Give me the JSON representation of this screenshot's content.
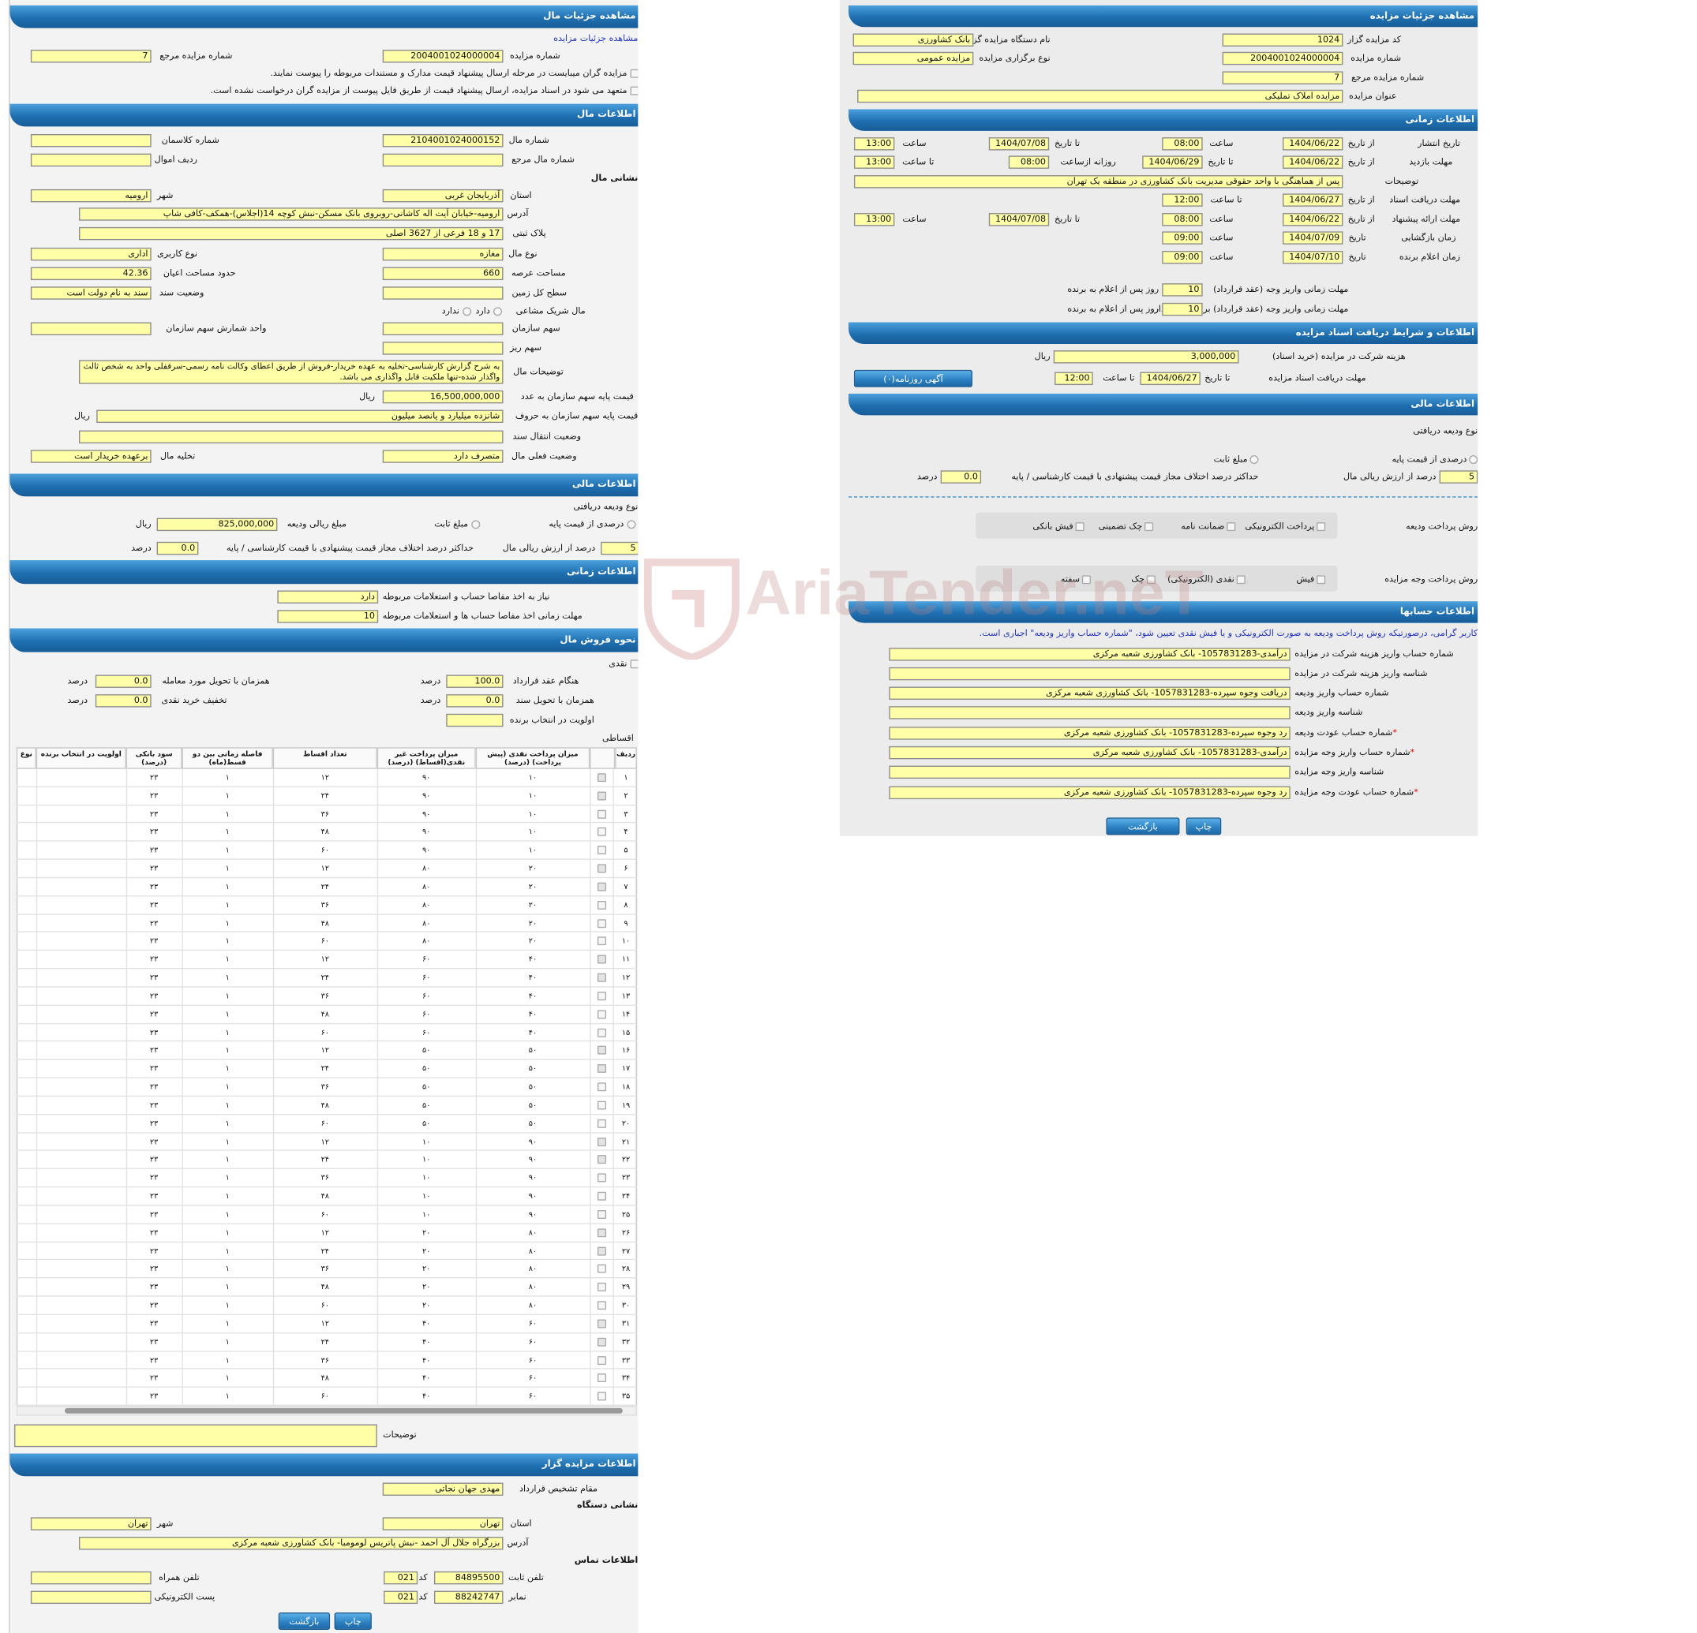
{
  "watermark": "AriaTender.neT",
  "right": {
    "headers": [
      "مشاهده جزئیات مزایده",
      "اطلاعات زمانی",
      "اطلاعات و شرایط دریافت اسناد مزایده",
      "اطلاعات مالی",
      "اطلاعات حسابها"
    ],
    "lines": [
      [
        "کد مزایده گزار",
        "1024",
        "نام دستگاه مزایده گزار",
        "بانک کشاورزی"
      ],
      [
        "شماره مزایده",
        "2004001024000004",
        "نوع برگزاری مزایده",
        "مزایده عمومی"
      ],
      [
        "شماره مزایده مرجع",
        "7"
      ],
      [
        "عنوان مزایده",
        "مزایده املاک تملیکی"
      ],
      [
        "تاریخ انتشار",
        "از تاریخ",
        "1404/06/22",
        "ساعت",
        "08:00",
        "تا تاریخ",
        "1404/07/08",
        "ساعت",
        "13:00"
      ],
      [
        "مهلت بازدید",
        "از تاریخ",
        "1404/06/22",
        "تا تاریخ",
        "1404/06/29",
        "روزانه ازساعت",
        "08:00",
        "تا ساعت",
        "13:00"
      ],
      [
        "توضیحات",
        "پس از هماهنگی با واحد حقوقی مدیریت بانک کشاورزی در منطقه یک تهران"
      ],
      [
        "مهلت دریافت اسناد",
        "از تاریخ",
        "1404/06/27",
        "تا ساعت",
        "12:00"
      ],
      [
        "مهلت ارائه پیشنهاد",
        "از تاریخ",
        "1404/06/22",
        "ساعت",
        "08:00",
        "تا تاریخ",
        "1404/07/08",
        "ساعت",
        "13:00"
      ],
      [
        "زمان بازگشایی",
        "تاریخ",
        "1404/07/09",
        "ساعت",
        "09:00"
      ],
      [
        "زمان اعلام برنده",
        "تاریخ",
        "1404/07/10",
        "ساعت",
        "09:00"
      ],
      [
        "مهلت زمانی واریز وجه (عقد قرارداد)",
        "10",
        "روز پس از اعلام به برنده"
      ],
      [
        "مهلت زمانی واریز وجه (عقد قرارداد) برای وثیقه گذار",
        "10",
        "روز پس از اعلام به برنده"
      ],
      [
        "هزینه شرکت در مزایده (خرید اسناد)",
        "3,000,000",
        "ریال"
      ],
      [
        "مهلت دریافت اسناد مزایده",
        "تا تاریخ",
        "1404/06/27",
        "تا ساعت",
        "12:00",
        "آگهی روزنامه(۰)"
      ],
      [
        "نوع ودیعه دریافتی"
      ],
      [
        "درصدی از قیمت پایه",
        "مبلغ ثابت"
      ],
      [
        "5",
        "درصد از ارزش ریالی مال",
        "حداکثر درصد اختلاف مجاز قیمت پیشنهادی با قیمت کارشناسی / پایه",
        "0.0",
        "درصد"
      ],
      [
        "روش پرداخت ودیعه",
        "پرداخت الکترونیکی",
        "ضمانت نامه",
        "چک تضمینی",
        "فیش بانکی"
      ],
      [
        "روش پرداخت وجه مزایده",
        "فیش",
        "نقدی (الکترونیکی)",
        "چک",
        "سفته"
      ],
      [
        "کاربر گرامی، درصورتیکه روش پرداخت ودیعه به صورت الکترونیکی و یا فیش نقدی تعیین شود، \"شماره حساب واریز ودیعه\" اجباری است."
      ],
      [
        "شماره حساب واریز هزینه شرکت در مزایده",
        "درآمدی-1057831283- بانک کشاورزی شعبه مرکزی"
      ],
      [
        "شناسه واریز هزینه شرکت در مزایده"
      ],
      [
        "شماره حساب واریز ودیعه",
        "دریافت وجوه سپرده-1057831283- بانک کشاورزی شعبه مرکزی"
      ],
      [
        "شناسه واریز ودیعه"
      ],
      [
        "شماره حساب عودت ودیعه",
        "*",
        "رد وجوه سپرده-1057831283- بانک کشاورزی شعبه مرکزی"
      ],
      [
        "شماره حساب واریز وجه مزایده",
        "*",
        "درآمدی-1057831283- بانک کشاورزی شعبه مرکزی"
      ],
      [
        "شناسه واریز وجه مزایده"
      ],
      [
        "شماره حساب عودت وجه مزایده",
        "*",
        "رد وجوه سپرده-1057831283- بانک کشاورزی شعبه مرکزی"
      ],
      [
        "چاپ",
        "بازگشت"
      ]
    ]
  },
  "left": {
    "headers": [
      "مشاهده جزئیات مال",
      "اطلاعات مال",
      "اطلاعات مالی",
      "اطلاعات زمانی",
      "نحوه فروش مال",
      "اطلاعات مزایده گزار"
    ],
    "lines": [
      [
        "مشاهده جزئیات مزایده"
      ],
      [
        "شماره مزایده",
        "2004001024000004",
        "شماره مزایده مرجع",
        "7"
      ],
      [
        "مزایده گران میبایست در مرحله ارسال پیشنهاد قیمت مدارک و مستندات مربوطه را پیوست نمایند."
      ],
      [
        "متعهد می شود در اسناد مزایده، ارسال پیشنهاد قیمت از طریق فایل پیوست از مزایده گران درخواست نشده است."
      ],
      [
        "شماره مال",
        "2104001024000152",
        "شماره کلاسمان"
      ],
      [
        "شماره مال مرجع",
        "ردیف اموال"
      ],
      [
        "نشانی مال"
      ],
      [
        "استان",
        "آذربایجان غربی",
        "شهر",
        "ارومیه"
      ],
      [
        "آدرس",
        "ارومیه-خیابان آیت اله کاشانی-روبروی بانک مسکن-نبش کوچه 14(اجلاس)-همکف-کافی شاپ"
      ],
      [
        "پلاک ثبتی",
        "17 و 18 فرعی از 3627 اصلی"
      ],
      [
        "نوع مال",
        "مغازه",
        "نوع کاربری",
        "اداری"
      ],
      [
        "مساحت عرصه",
        "660",
        "حدود مساحت اعیان",
        "42.36"
      ],
      [
        "سطح کل زمین",
        "وضعیت سند",
        "سند به نام دولت است"
      ],
      [
        "مال شریک مشاعی",
        "دارد",
        "ندارد"
      ],
      [
        "سهم سازمان",
        "واحد شمارش سهم سازمان"
      ],
      [
        "سهم ریز"
      ],
      [
        "توضیحات مال",
        "به شرح گزارش کارشناسی-تخلیه به عهده خریدار-فروش از طریق اعطای وکالت نامه رسمی-سرقفلی واحد به شخص ثالث واگذار شده-تنها ملکیت قابل واگذاری می باشد."
      ],
      [
        "قیمت پایه سهم سازمان به عدد",
        "16,500,000,000",
        "ریال"
      ],
      [
        "قیمت پایه سهم سازمان به حروف",
        "شانزده میلیارد و پانصد میلیون",
        "ریال"
      ],
      [
        "وضعیت انتقال سند"
      ],
      [
        "وضعیت فعلی مال",
        "متصرف دارد",
        "تخلیه مال",
        "برعهده خریدار است"
      ],
      [
        "نوع ودیعه دریافتی"
      ],
      [
        "درصدی از قیمت پایه",
        "مبلغ ثابت",
        "مبلغ ریالی ودیعه",
        "825,000,000",
        "ریال"
      ],
      [
        "5",
        "درصد از ارزش ریالی مال",
        "حداکثر درصد اختلاف مجاز قیمت پیشنهادی با قیمت کارشناسی / پایه",
        "0.0",
        "درصد"
      ],
      [
        "نیاز به اخذ مفاصا حساب و استعلامات مربوطه",
        "دارد"
      ],
      [
        "مهلت زمانی اخذ مفاصا حساب ها و استعلامات مربوطه",
        "10"
      ],
      [
        "نقدی"
      ],
      [
        "هنگام عقد قرارداد",
        "100.0",
        "درصد",
        "همزمان با تحویل مورد معامله",
        "0.0",
        "درصد"
      ],
      [
        "همزمان با تحویل سند",
        "0.0",
        "درصد",
        "تخفیف خرید نقدی",
        "0.0",
        "درصد"
      ],
      [
        "اولویت در انتخاب برنده"
      ],
      [
        "اقساطی"
      ],
      [
        "توضیحات"
      ],
      [
        "مقام تشخیص قرارداد",
        "مهدی جهان نجاتی"
      ],
      [
        "نشانی دستگاه"
      ],
      [
        "استان",
        "تهران",
        "شهر",
        "تهران"
      ],
      [
        "آدرس",
        "بزرگراه جلال آل احمد -نبش پاتریس لومومبا- بانک کشاورزی شعبه مرکزی"
      ],
      [
        "اطلاعات تماس"
      ],
      [
        "تلفن ثابت",
        "84895500",
        "کد",
        "021",
        "تلفن همراه"
      ],
      [
        "نمابر",
        "88242747",
        "کد",
        "021",
        "پست الکترونیکی"
      ],
      [
        "چاپ",
        "بازگشت"
      ]
    ],
    "table": {
      "headers": [
        "ردیف",
        "میزان پرداخت نقدی (پیش پرداخت) (درصد)",
        "میزان پرداخت غیر نقدی(اقساط) (درصد)",
        "تعداد اقساط",
        "فاصله زمانی بین دو قسط(ماه)",
        "سود بانکی (درصد)",
        "اولویت در انتخاب برنده",
        "نوع"
      ],
      "rows": [
        [
          "۱",
          "۱۰",
          "۹۰",
          "۱۲",
          "۱",
          "۲۳"
        ],
        [
          "۲",
          "۱۰",
          "۹۰",
          "۲۴",
          "۱",
          "۲۳"
        ],
        [
          "۳",
          "۱۰",
          "۹۰",
          "۳۶",
          "۱",
          "۲۳"
        ],
        [
          "۴",
          "۱۰",
          "۹۰",
          "۴۸",
          "۱",
          "۲۳"
        ],
        [
          "۵",
          "۱۰",
          "۹۰",
          "۶۰",
          "۱",
          "۲۳"
        ],
        [
          "۶",
          "۲۰",
          "۸۰",
          "۱۲",
          "۱",
          "۲۳"
        ],
        [
          "۷",
          "۲۰",
          "۸۰",
          "۲۴",
          "۱",
          "۲۳"
        ],
        [
          "۸",
          "۲۰",
          "۸۰",
          "۳۶",
          "۱",
          "۲۳"
        ],
        [
          "۹",
          "۲۰",
          "۸۰",
          "۴۸",
          "۱",
          "۲۳"
        ],
        [
          "۱۰",
          "۲۰",
          "۸۰",
          "۶۰",
          "۱",
          "۲۳"
        ],
        [
          "۱۱",
          "۴۰",
          "۶۰",
          "۱۲",
          "۱",
          "۲۳"
        ],
        [
          "۱۲",
          "۴۰",
          "۶۰",
          "۲۴",
          "۱",
          "۲۳"
        ],
        [
          "۱۳",
          "۴۰",
          "۶۰",
          "۳۶",
          "۱",
          "۲۳"
        ],
        [
          "۱۴",
          "۴۰",
          "۶۰",
          "۴۸",
          "۱",
          "۲۳"
        ],
        [
          "۱۵",
          "۴۰",
          "۶۰",
          "۶۰",
          "۱",
          "۲۳"
        ],
        [
          "۱۶",
          "۵۰",
          "۵۰",
          "۱۲",
          "۱",
          "۲۳"
        ],
        [
          "۱۷",
          "۵۰",
          "۵۰",
          "۲۴",
          "۱",
          "۲۳"
        ],
        [
          "۱۸",
          "۵۰",
          "۵۰",
          "۳۶",
          "۱",
          "۲۳"
        ],
        [
          "۱۹",
          "۵۰",
          "۵۰",
          "۴۸",
          "۱",
          "۲۳"
        ],
        [
          "۲۰",
          "۵۰",
          "۵۰",
          "۶۰",
          "۱",
          "۲۳"
        ],
        [
          "۲۱",
          "۹۰",
          "۱۰",
          "۱۲",
          "۱",
          "۲۳"
        ],
        [
          "۲۲",
          "۹۰",
          "۱۰",
          "۲۴",
          "۱",
          "۲۳"
        ],
        [
          "۲۳",
          "۹۰",
          "۱۰",
          "۳۶",
          "۱",
          "۲۳"
        ],
        [
          "۲۴",
          "۹۰",
          "۱۰",
          "۴۸",
          "۱",
          "۲۳"
        ],
        [
          "۲۵",
          "۹۰",
          "۱۰",
          "۶۰",
          "۱",
          "۲۳"
        ],
        [
          "۲۶",
          "۸۰",
          "۲۰",
          "۱۲",
          "۱",
          "۲۳"
        ],
        [
          "۲۷",
          "۸۰",
          "۲۰",
          "۲۴",
          "۱",
          "۲۳"
        ],
        [
          "۲۸",
          "۸۰",
          "۲۰",
          "۳۶",
          "۱",
          "۲۳"
        ],
        [
          "۲۹",
          "۸۰",
          "۲۰",
          "۴۸",
          "۱",
          "۲۳"
        ],
        [
          "۳۰",
          "۸۰",
          "۲۰",
          "۶۰",
          "۱",
          "۲۳"
        ],
        [
          "۳۱",
          "۶۰",
          "۴۰",
          "۱۲",
          "۱",
          "۲۳"
        ],
        [
          "۳۲",
          "۶۰",
          "۴۰",
          "۲۴",
          "۱",
          "۲۳"
        ],
        [
          "۳۳",
          "۶۰",
          "۴۰",
          "۳۶",
          "۱",
          "۲۳"
        ],
        [
          "۳۴",
          "۶۰",
          "۴۰",
          "۴۸",
          "۱",
          "۲۳"
        ],
        [
          "۳۵",
          "۶۰",
          "۴۰",
          "۶۰",
          "۱",
          "۲۳"
        ]
      ]
    }
  }
}
